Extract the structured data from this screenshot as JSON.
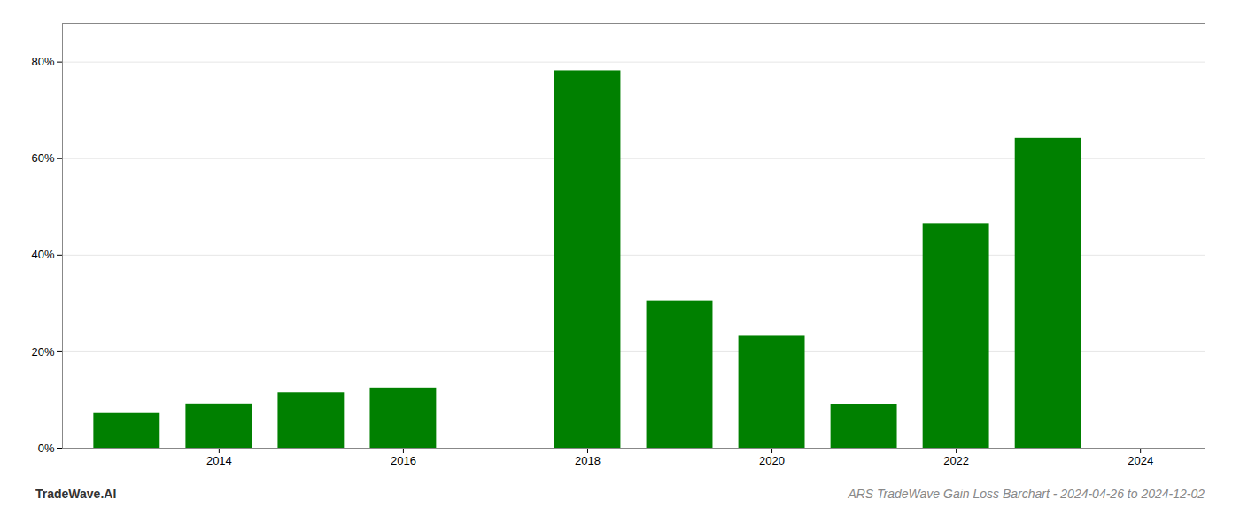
{
  "chart_data": {
    "type": "bar",
    "title": "ARS TradeWave Gain Loss Barchart - 2024-04-26 to 2024-12-02",
    "annotations": [
      "TradeWave.AI"
    ],
    "x": [
      2013,
      2014,
      2015,
      2016,
      2018,
      2019,
      2020,
      2021,
      2022,
      2023
    ],
    "values": [
      0.072,
      0.092,
      0.115,
      0.125,
      0.782,
      0.305,
      0.232,
      0.09,
      0.465,
      0.642
    ],
    "color": "#008000",
    "xlim": [
      2012.3,
      2024.7
    ],
    "xticks": [
      2014,
      2016,
      2018,
      2020,
      2022,
      2024
    ],
    "ylim": [
      0,
      0.88
    ],
    "yticks": [
      {
        "value": 0.0,
        "label": "0%"
      },
      {
        "value": 0.2,
        "label": "20%"
      },
      {
        "value": 0.4,
        "label": "40%"
      },
      {
        "value": 0.6,
        "label": "60%"
      },
      {
        "value": 0.8,
        "label": "80%"
      }
    ],
    "grid": true
  }
}
